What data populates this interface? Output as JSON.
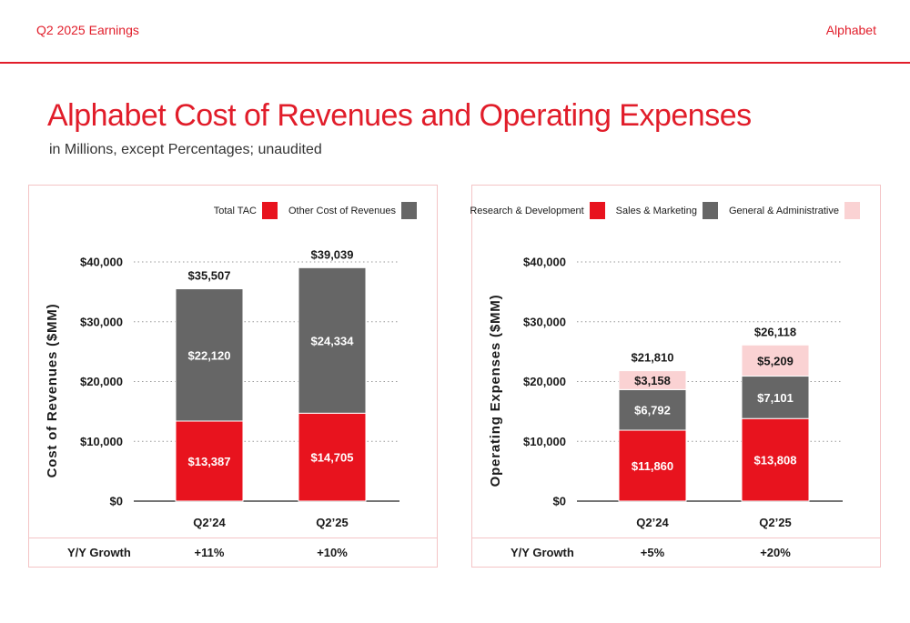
{
  "header": {
    "left": "Q2 2025 Earnings",
    "right": "Alphabet"
  },
  "title": "Alphabet Cost of Revenues and Operating Expenses",
  "subtitle": "in Millions, except Percentages; unaudited",
  "growth_label": "Y/Y Growth",
  "colors": {
    "accent": "#e11d2a",
    "red": "#e8131e",
    "gray": "#666666",
    "pink": "#fad2d3"
  },
  "chart_data": [
    {
      "type": "bar",
      "stacked": true,
      "categories": [
        "Q2’24",
        "Q2’25"
      ],
      "ylabel": "Cost of Revenues ($MM)",
      "ylim": [
        0,
        40000
      ],
      "yticks": [
        0,
        10000,
        20000,
        30000,
        40000
      ],
      "ytick_labels": [
        "$0",
        "$10,000",
        "$20,000",
        "$30,000",
        "$40,000"
      ],
      "series": [
        {
          "name": "Total TAC",
          "color": "#e8131e",
          "values": [
            13387,
            14705
          ],
          "labels": [
            "$13,387",
            "$14,705"
          ]
        },
        {
          "name": "Other Cost of Revenues",
          "color": "#666666",
          "values": [
            22120,
            24334
          ],
          "labels": [
            "$22,120",
            "$24,334"
          ]
        }
      ],
      "totals": [
        35507,
        39039
      ],
      "total_labels": [
        "$35,507",
        "$39,039"
      ],
      "growth": [
        "+11%",
        "+10%"
      ],
      "grid": "dotted horizontal",
      "legend": "top-right"
    },
    {
      "type": "bar",
      "stacked": true,
      "categories": [
        "Q2’24",
        "Q2’25"
      ],
      "ylabel": "Operating Expenses ($MM)",
      "ylim": [
        0,
        40000
      ],
      "yticks": [
        0,
        10000,
        20000,
        30000,
        40000
      ],
      "ytick_labels": [
        "$0",
        "$10,000",
        "$20,000",
        "$30,000",
        "$40,000"
      ],
      "series": [
        {
          "name": "Research & Development",
          "color": "#e8131e",
          "values": [
            11860,
            13808
          ],
          "labels": [
            "$11,860",
            "$13,808"
          ]
        },
        {
          "name": "Sales & Marketing",
          "color": "#666666",
          "values": [
            6792,
            7101
          ],
          "labels": [
            "$6,792",
            "$7,101"
          ]
        },
        {
          "name": "General & Administrative",
          "color": "#fad2d3",
          "values": [
            3158,
            5209
          ],
          "labels": [
            "$3,158",
            "$5,209"
          ]
        }
      ],
      "totals": [
        21810,
        26118
      ],
      "total_labels": [
        "$21,810",
        "$26,118"
      ],
      "growth": [
        "+5%",
        "+20%"
      ],
      "grid": "dotted horizontal",
      "legend": "top-right"
    }
  ]
}
